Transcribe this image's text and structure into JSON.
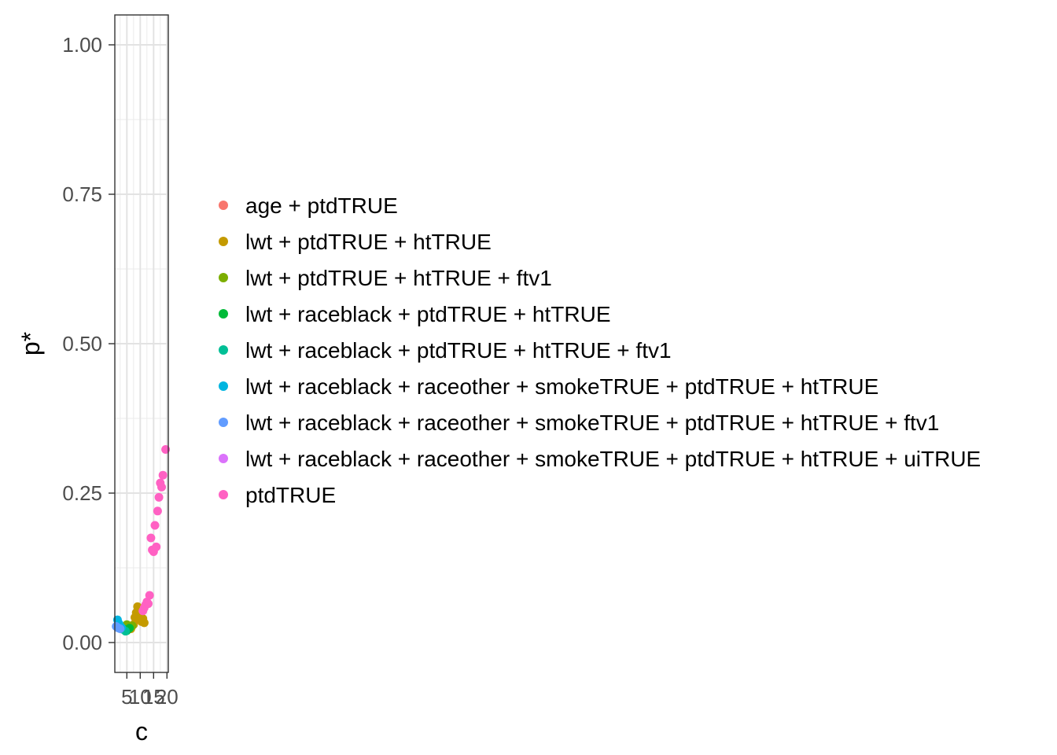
{
  "chart_data": {
    "type": "scatter",
    "xlabel": "c",
    "ylabel": "p*",
    "xlim": [
      0.5,
      20.5
    ],
    "ylim": [
      -0.05,
      1.05
    ],
    "x_ticks": [
      5,
      10,
      15,
      20
    ],
    "x_tick_labels": [
      "5",
      "10",
      "15",
      "20"
    ],
    "y_ticks": [
      0.0,
      0.25,
      0.5,
      0.75,
      1.0
    ],
    "y_tick_labels": [
      "0.00",
      "0.25",
      "0.50",
      "0.75",
      "1.00"
    ],
    "grid": true,
    "legend_position": "right",
    "series": [
      {
        "name": "age + ptdTRUE",
        "color": "#F8766D",
        "points": []
      },
      {
        "name": "lwt + ptdTRUE + htTRUE",
        "color": "#C49A00",
        "points": [
          {
            "x": 4.5,
            "y": 0.025
          },
          {
            "x": 5.5,
            "y": 0.028
          },
          {
            "x": 6.5,
            "y": 0.023
          },
          {
            "x": 7.5,
            "y": 0.03
          },
          {
            "x": 8.0,
            "y": 0.042
          },
          {
            "x": 8.5,
            "y": 0.05
          },
          {
            "x": 9.0,
            "y": 0.06
          },
          {
            "x": 9.5,
            "y": 0.045
          },
          {
            "x": 10.0,
            "y": 0.038
          },
          {
            "x": 10.5,
            "y": 0.035
          },
          {
            "x": 11.0,
            "y": 0.04
          },
          {
            "x": 11.5,
            "y": 0.033
          }
        ]
      },
      {
        "name": "lwt + ptdTRUE + htTRUE + ftv1",
        "color": "#7CAE00",
        "points": [
          {
            "x": 5.0,
            "y": 0.03
          },
          {
            "x": 6.0,
            "y": 0.025
          },
          {
            "x": 7.0,
            "y": 0.028
          }
        ]
      },
      {
        "name": "lwt + raceblack + ptdTRUE + htTRUE",
        "color": "#00BA38",
        "points": [
          {
            "x": 4.0,
            "y": 0.022
          },
          {
            "x": 5.0,
            "y": 0.02
          },
          {
            "x": 6.0,
            "y": 0.024
          }
        ]
      },
      {
        "name": "lwt + raceblack + ptdTRUE + htTRUE + ftv1",
        "color": "#00BF96",
        "points": [
          {
            "x": 3.5,
            "y": 0.022
          },
          {
            "x": 4.5,
            "y": 0.019
          }
        ]
      },
      {
        "name": "lwt + raceblack + raceother + smokeTRUE + ptdTRUE + htTRUE",
        "color": "#00B5E0",
        "points": [
          {
            "x": 1.5,
            "y": 0.038
          },
          {
            "x": 2.0,
            "y": 0.032
          },
          {
            "x": 2.5,
            "y": 0.028
          },
          {
            "x": 3.0,
            "y": 0.025
          }
        ]
      },
      {
        "name": "lwt + raceblack + raceother + smokeTRUE + ptdTRUE + htTRUE + ftv1",
        "color": "#619CFF",
        "points": [
          {
            "x": 1.0,
            "y": 0.027
          },
          {
            "x": 1.5,
            "y": 0.025
          },
          {
            "x": 2.0,
            "y": 0.024
          },
          {
            "x": 2.5,
            "y": 0.023
          }
        ]
      },
      {
        "name": "lwt + raceblack + raceother + smokeTRUE + ptdTRUE + htTRUE + uiTRUE",
        "color": "#DB72FB",
        "points": []
      },
      {
        "name": "ptdTRUE",
        "color": "#FF61C3",
        "points": [
          {
            "x": 11.0,
            "y": 0.053
          },
          {
            "x": 11.5,
            "y": 0.058
          },
          {
            "x": 12.0,
            "y": 0.063
          },
          {
            "x": 12.5,
            "y": 0.068
          },
          {
            "x": 13.0,
            "y": 0.065
          },
          {
            "x": 13.5,
            "y": 0.079
          },
          {
            "x": 14.0,
            "y": 0.175
          },
          {
            "x": 14.5,
            "y": 0.155
          },
          {
            "x": 15.0,
            "y": 0.152
          },
          {
            "x": 15.5,
            "y": 0.196
          },
          {
            "x": 16.0,
            "y": 0.16
          },
          {
            "x": 16.5,
            "y": 0.22
          },
          {
            "x": 17.0,
            "y": 0.243
          },
          {
            "x": 17.5,
            "y": 0.267
          },
          {
            "x": 18.0,
            "y": 0.26
          },
          {
            "x": 18.5,
            "y": 0.28
          },
          {
            "x": 19.5,
            "y": 0.323
          }
        ]
      }
    ]
  }
}
